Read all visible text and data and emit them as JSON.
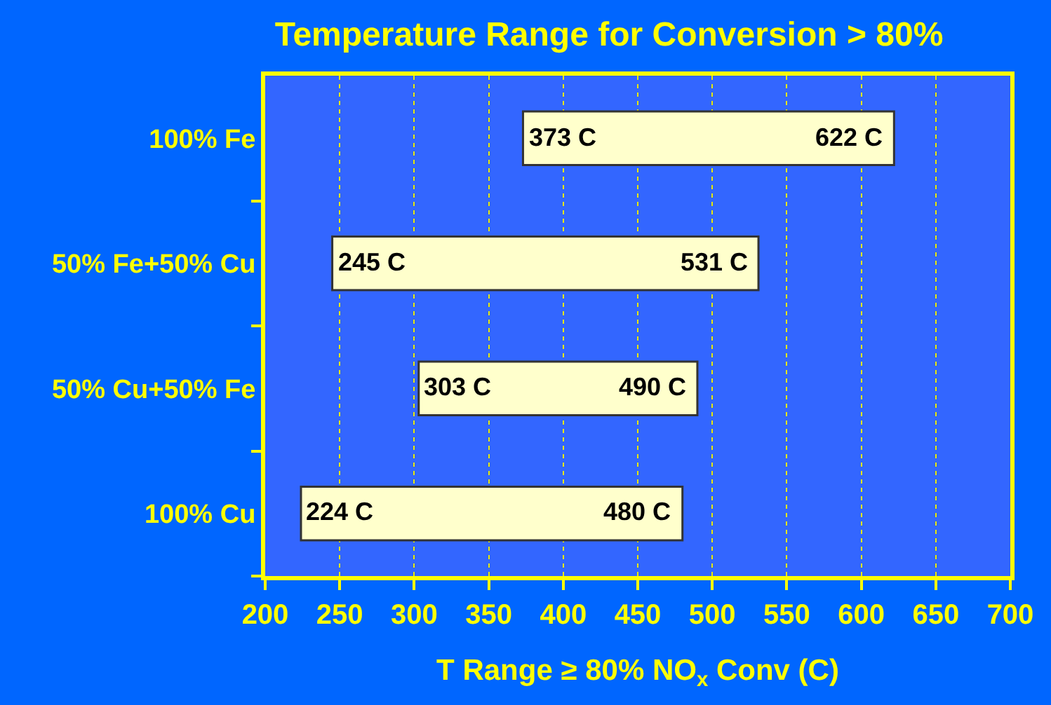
{
  "chart_data": {
    "type": "bar",
    "orientation": "horizontal",
    "title": "Temperature Range for Conversion > 80%",
    "xlabel": "T Range ≥ 80% NO$_{x}$ Conv (C)",
    "categories": [
      "100% Fe",
      "50% Fe+50% Cu",
      "50% Cu+50% Fe",
      "100% Cu"
    ],
    "base": [
      373,
      245,
      303,
      224
    ],
    "values": [
      249,
      286,
      187,
      256
    ],
    "color": "#ffffcc",
    "xlim": [
      200,
      700
    ],
    "xticks": [
      200,
      250,
      300,
      350,
      400,
      450,
      500,
      550,
      600,
      650,
      700
    ],
    "grid": "x",
    "annotations": [
      {
        "text": "373 C",
        "x": 373,
        "y": "100% Fe"
      },
      {
        "text": "622 C",
        "x": 622,
        "y": "100% Fe"
      },
      {
        "text": "245 C",
        "x": 245,
        "y": "50% Fe+50% Cu"
      },
      {
        "text": "531 C",
        "x": 531,
        "y": "50% Fe+50% Cu"
      },
      {
        "text": "303 C",
        "x": 303,
        "y": "50% Cu+50% Fe"
      },
      {
        "text": "490 C",
        "x": 490,
        "y": "50% Cu+50% Fe"
      },
      {
        "text": "224 C",
        "x": 224,
        "y": "100% Cu"
      },
      {
        "text": "480 C",
        "x": 480,
        "y": "100% Cu"
      }
    ]
  }
}
